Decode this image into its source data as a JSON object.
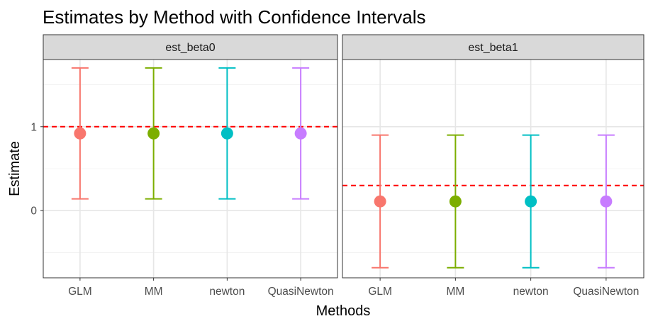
{
  "chart_data": {
    "type": "errorbar",
    "title": "Estimates by Method with Confidence Intervals",
    "xlabel": "Methods",
    "ylabel": "Estimate",
    "categories": [
      "GLM",
      "MM",
      "newton",
      "QuasiNewton"
    ],
    "colors": {
      "GLM": "#F8766D",
      "MM": "#7CAE00",
      "newton": "#00BFC4",
      "QuasiNewton": "#C77CFF"
    },
    "reference_line_color": "#FF0000",
    "ylim": [
      -0.8,
      1.8
    ],
    "yticks": [
      0,
      1
    ],
    "grid": true,
    "legend": "none",
    "panels": [
      {
        "strip": "est_beta0",
        "reference": 1.0,
        "points": [
          {
            "method": "GLM",
            "estimate": 0.92,
            "lower": 0.14,
            "upper": 1.7
          },
          {
            "method": "MM",
            "estimate": 0.92,
            "lower": 0.14,
            "upper": 1.7
          },
          {
            "method": "newton",
            "estimate": 0.92,
            "lower": 0.14,
            "upper": 1.7
          },
          {
            "method": "QuasiNewton",
            "estimate": 0.92,
            "lower": 0.14,
            "upper": 1.7
          }
        ]
      },
      {
        "strip": "est_beta1",
        "reference": 0.3,
        "points": [
          {
            "method": "GLM",
            "estimate": 0.11,
            "lower": -0.68,
            "upper": 0.9
          },
          {
            "method": "MM",
            "estimate": 0.11,
            "lower": -0.68,
            "upper": 0.9
          },
          {
            "method": "newton",
            "estimate": 0.11,
            "lower": -0.68,
            "upper": 0.9
          },
          {
            "method": "QuasiNewton",
            "estimate": 0.11,
            "lower": -0.68,
            "upper": 0.9
          }
        ]
      }
    ]
  }
}
